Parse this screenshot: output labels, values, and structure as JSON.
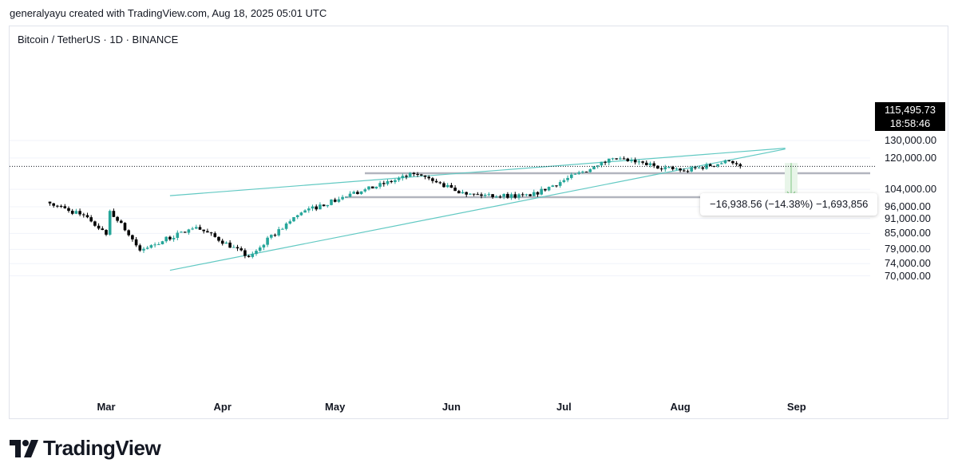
{
  "header": {
    "author_line": "generalyayu created with TradingView.com, Aug 18, 2025 05:01 UTC"
  },
  "symbol_line": "Bitcoin / TetherUS · 1D · BINANCE",
  "branding": {
    "logo_text": "TradingView"
  },
  "colors": {
    "up": "#26a69a",
    "down": "#000000",
    "trendline": "#62c9c3",
    "level": "#b2b5be",
    "measure_fill": "#e8f5e9",
    "measure_line": "#81c784"
  },
  "last_price": {
    "price": "115,495.73",
    "countdown": "18:58:46"
  },
  "measure_label": "−16,938.56 (−14.38%) −1,693,856",
  "chart_data": {
    "type": "candlestick",
    "y_scale": "log",
    "y_ticks": [
      "130,000.00",
      "120,000.00",
      "104,000.00",
      "96,000.00",
      "91,000.00",
      "85,000.00",
      "79,000.00",
      "74,000.00",
      "70,000.00"
    ],
    "x_ticks": [
      "Mar",
      "Apr",
      "May",
      "Jun",
      "Jul",
      "Aug",
      "Sep"
    ],
    "ohlc_summary": [
      {
        "date": "2025-02-14",
        "close": 97500
      },
      {
        "date": "2025-02-24",
        "close": 91500
      },
      {
        "date": "2025-03-01",
        "close": 84500
      },
      {
        "date": "2025-03-02",
        "close": 94200
      },
      {
        "date": "2025-03-10",
        "close": 78600
      },
      {
        "date": "2025-03-25",
        "close": 87500
      },
      {
        "date": "2025-04-08",
        "close": 76300
      },
      {
        "date": "2025-04-22",
        "close": 93500
      },
      {
        "date": "2025-05-08",
        "close": 103000
      },
      {
        "date": "2025-05-22",
        "close": 111500
      },
      {
        "date": "2025-06-05",
        "close": 101500
      },
      {
        "date": "2025-06-22",
        "close": 100800
      },
      {
        "date": "2025-07-10",
        "close": 116000
      },
      {
        "date": "2025-07-14",
        "close": 119800
      },
      {
        "date": "2025-08-02",
        "close": 113000
      },
      {
        "date": "2025-08-14",
        "close": 118300
      },
      {
        "date": "2025-08-17",
        "close": 115495.73
      }
    ],
    "horizontal_levels": [
      111900,
      100300
    ],
    "trendlines": [
      {
        "name": "upper",
        "from": {
          "date": "2025-03-18",
          "price": 101000
        },
        "to": {
          "date": "2025-08-29",
          "price": 125500
        }
      },
      {
        "name": "lower",
        "from": {
          "date": "2025-03-18",
          "price": 71800
        },
        "to": {
          "date": "2025-08-29",
          "price": 125000
        }
      }
    ],
    "measure": {
      "from_price": 117300,
      "to_price": 100300,
      "change": -16938.56,
      "change_pct": -14.38
    }
  }
}
